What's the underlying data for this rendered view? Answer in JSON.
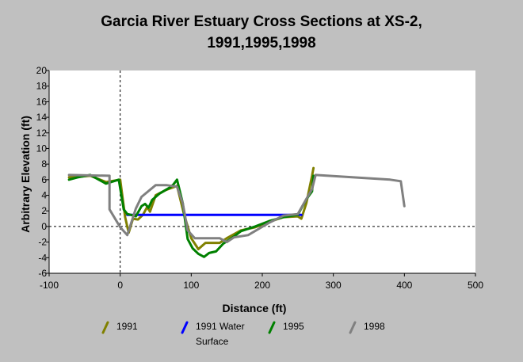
{
  "chart_data": {
    "type": "line",
    "title_line1": "Garcia River Estuary Cross Sections at XS-2,",
    "title_line2": "1991,1995,1998",
    "xlabel": "Distance (ft)",
    "ylabel": "Arbitrary Elevation (ft)",
    "xlim": [
      -100,
      500
    ],
    "ylim": [
      -6,
      20
    ],
    "x_ticks": [
      -100,
      0,
      100,
      200,
      300,
      400,
      500
    ],
    "y_ticks": [
      -6,
      -4,
      -2,
      0,
      2,
      4,
      6,
      8,
      10,
      12,
      14,
      16,
      18,
      20
    ],
    "grid": false,
    "reference_lines": {
      "x": 0,
      "y": 0,
      "style": "dashed"
    },
    "legend_position": "bottom",
    "series": [
      {
        "name": "1991",
        "color": "#808000",
        "points": [
          [
            -72,
            6.3
          ],
          [
            -55,
            6.4
          ],
          [
            -42,
            6.5
          ],
          [
            -20,
            5.7
          ],
          [
            0,
            6.0
          ],
          [
            7,
            1.2
          ],
          [
            12,
            -0.8
          ],
          [
            18,
            1.0
          ],
          [
            25,
            0.9
          ],
          [
            32,
            1.5
          ],
          [
            38,
            2.5
          ],
          [
            42,
            1.9
          ],
          [
            50,
            4.0
          ],
          [
            65,
            4.7
          ],
          [
            80,
            5.2
          ],
          [
            90,
            1.5
          ],
          [
            100,
            -1.5
          ],
          [
            110,
            -2.9
          ],
          [
            120,
            -2.1
          ],
          [
            140,
            -2.1
          ],
          [
            150,
            -1.5
          ],
          [
            170,
            -0.5
          ],
          [
            190,
            -0.1
          ],
          [
            210,
            0.6
          ],
          [
            230,
            1.2
          ],
          [
            250,
            1.3
          ],
          [
            255,
            1.0
          ],
          [
            262,
            3.0
          ],
          [
            270,
            6.5
          ],
          [
            272,
            7.5
          ]
        ]
      },
      {
        "name": "1991 Water Surface",
        "color": "#0000ff",
        "points": [
          [
            10,
            1.5
          ],
          [
            255,
            1.5
          ]
        ]
      },
      {
        "name": "1995",
        "color": "#008000",
        "points": [
          [
            -72,
            6.0
          ],
          [
            -60,
            6.3
          ],
          [
            -42,
            6.6
          ],
          [
            -20,
            5.5
          ],
          [
            -2,
            6.0
          ],
          [
            5,
            2.2
          ],
          [
            10,
            1.6
          ],
          [
            15,
            1.5
          ],
          [
            22,
            1.3
          ],
          [
            30,
            2.6
          ],
          [
            35,
            2.9
          ],
          [
            40,
            2.4
          ],
          [
            45,
            3.4
          ],
          [
            55,
            4.2
          ],
          [
            70,
            5.0
          ],
          [
            75,
            5.4
          ],
          [
            80,
            6.0
          ],
          [
            88,
            3.0
          ],
          [
            95,
            -1.6
          ],
          [
            102,
            -2.8
          ],
          [
            110,
            -3.5
          ],
          [
            118,
            -3.9
          ],
          [
            125,
            -3.4
          ],
          [
            135,
            -3.2
          ],
          [
            145,
            -2.2
          ],
          [
            160,
            -1.3
          ],
          [
            170,
            -0.6
          ],
          [
            190,
            0.0
          ],
          [
            210,
            0.7
          ],
          [
            230,
            1.2
          ],
          [
            250,
            1.5
          ],
          [
            262,
            3.5
          ],
          [
            270,
            4.5
          ],
          [
            272,
            6.5
          ]
        ]
      },
      {
        "name": "1998",
        "color": "#808080",
        "points": [
          [
            -72,
            6.6
          ],
          [
            -15,
            6.5
          ],
          [
            -15,
            2.2
          ],
          [
            0,
            -0.1
          ],
          [
            10,
            -1.1
          ],
          [
            22,
            2.3
          ],
          [
            30,
            3.8
          ],
          [
            50,
            5.3
          ],
          [
            65,
            5.3
          ],
          [
            80,
            5.1
          ],
          [
            88,
            3.0
          ],
          [
            95,
            -0.5
          ],
          [
            105,
            -1.5
          ],
          [
            120,
            -1.5
          ],
          [
            140,
            -1.5
          ],
          [
            150,
            -2.0
          ],
          [
            160,
            -1.4
          ],
          [
            180,
            -1.1
          ],
          [
            210,
            0.5
          ],
          [
            230,
            1.4
          ],
          [
            250,
            1.6
          ],
          [
            265,
            4.0
          ],
          [
            270,
            4.8
          ],
          [
            275,
            6.6
          ],
          [
            380,
            6.0
          ],
          [
            395,
            5.8
          ],
          [
            400,
            2.6
          ]
        ]
      }
    ]
  },
  "legend": [
    {
      "label": "1991",
      "color": "#808000"
    },
    {
      "label_line1": "1991 Water",
      "label_line2": "Surface",
      "color": "#0000ff"
    },
    {
      "label": "1995",
      "color": "#008000"
    },
    {
      "label": "1998",
      "color": "#808080"
    }
  ]
}
